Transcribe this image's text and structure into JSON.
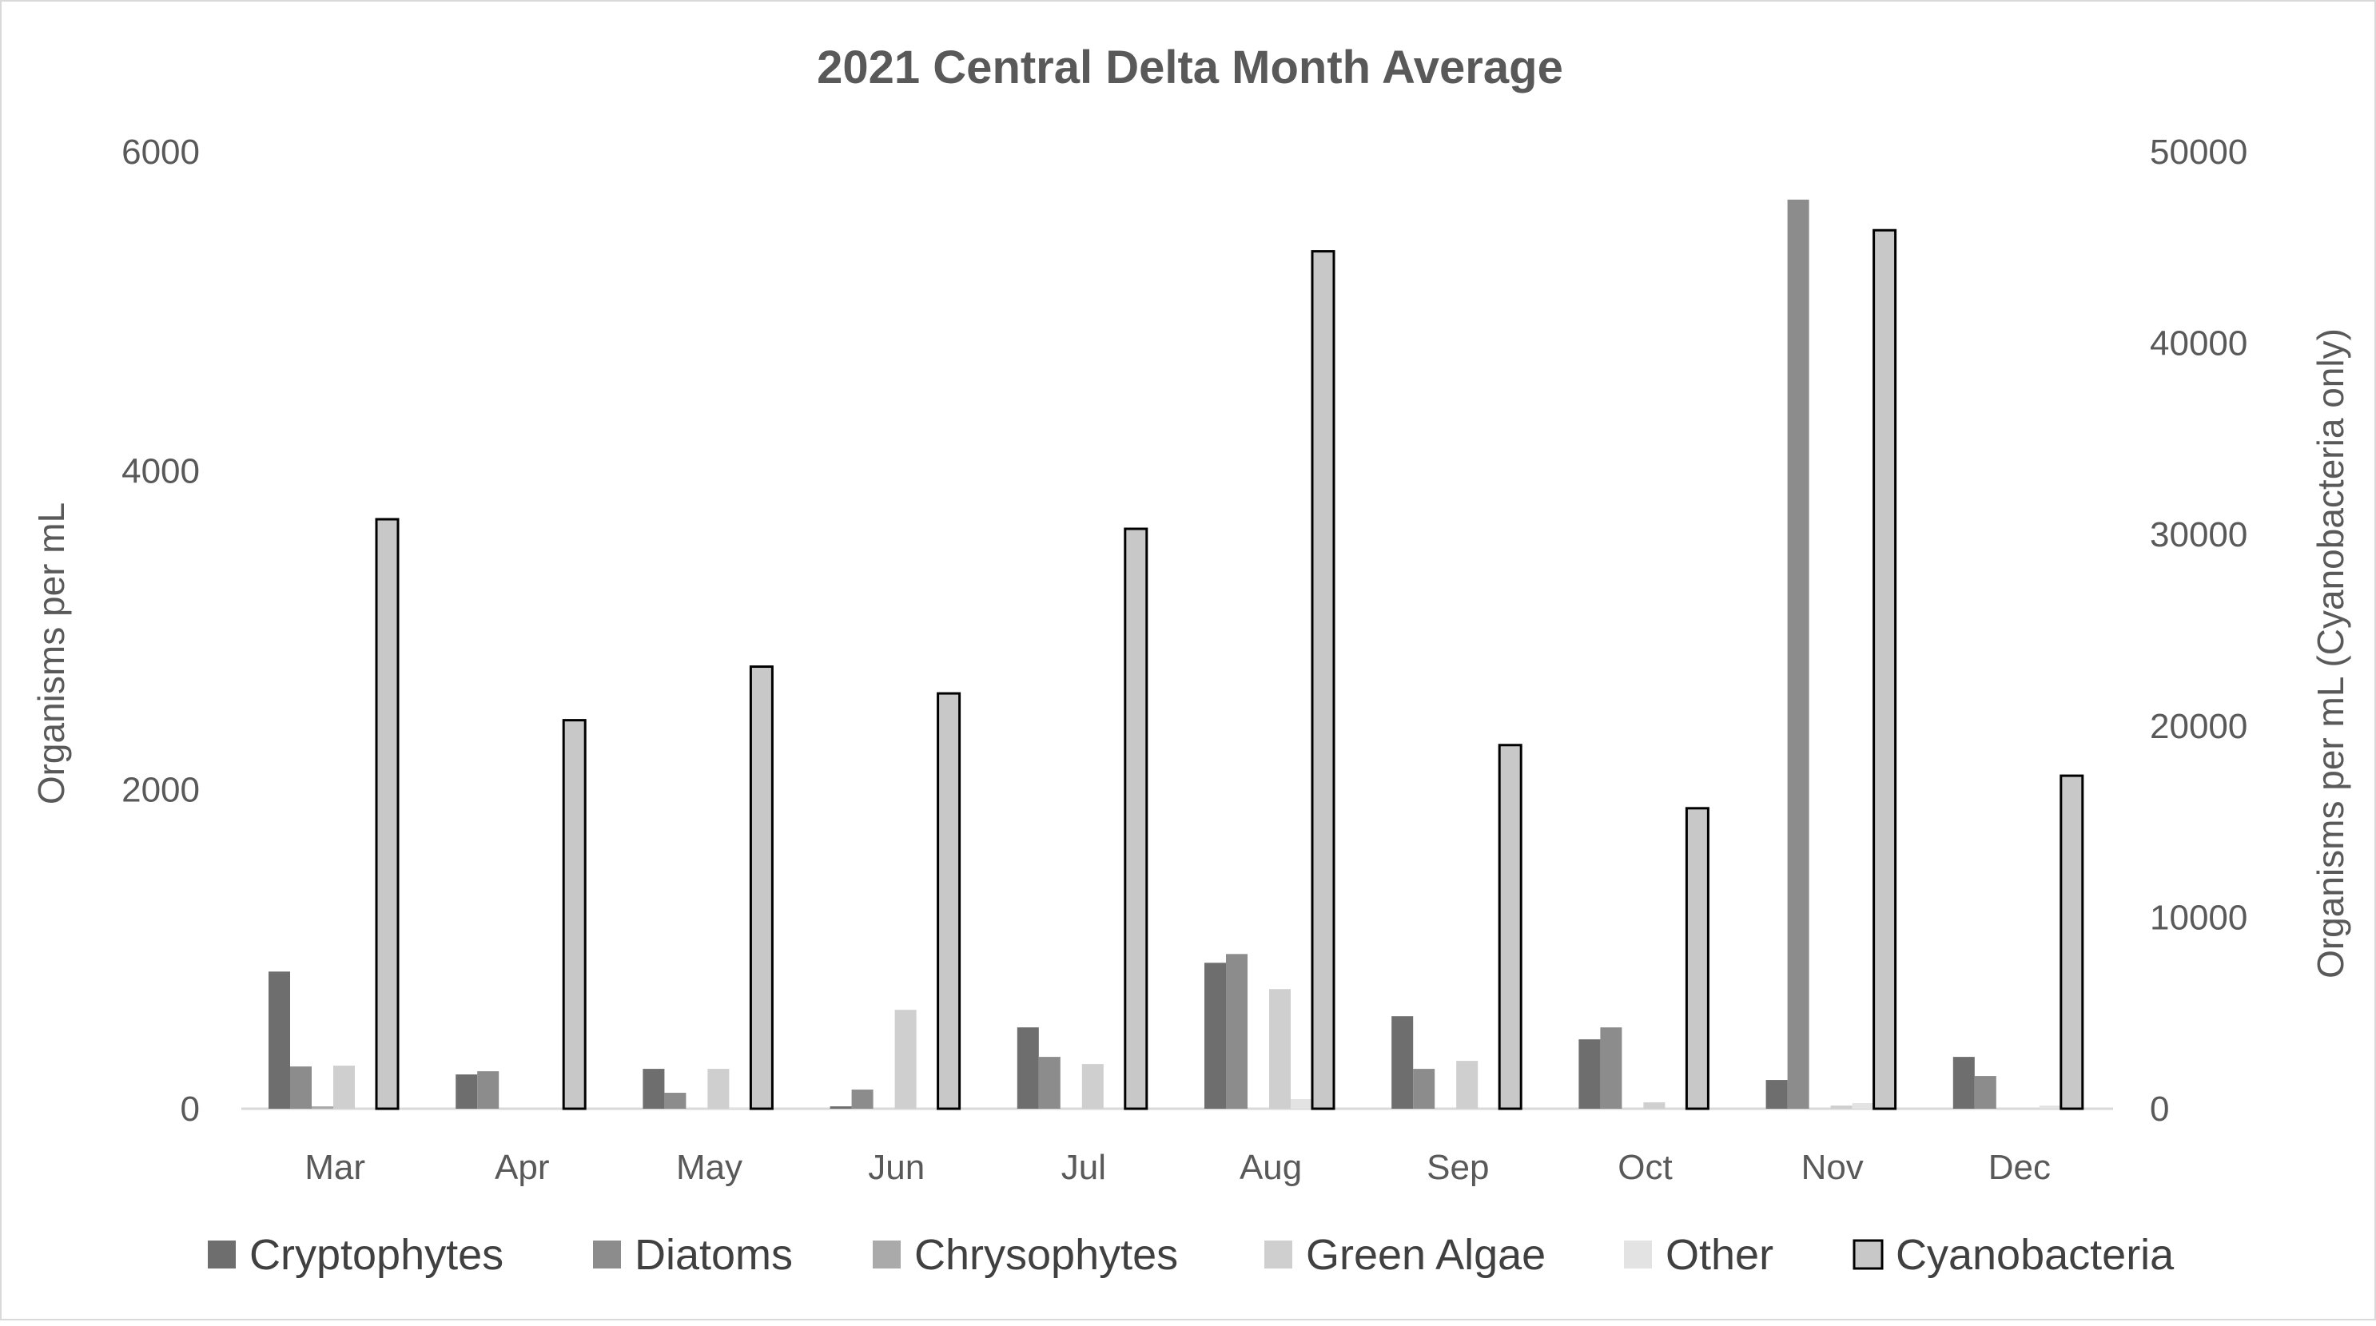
{
  "chart_data": {
    "type": "bar",
    "title": "2021 Central Delta Month Average",
    "categories": [
      "Mar",
      "Apr",
      "May",
      "Jun",
      "Jul",
      "Aug",
      "Sep",
      "Oct",
      "Nov",
      "Dec"
    ],
    "ylabel": "Organisms per mL",
    "ylabel_right": "Organisms per mL (Cyanobacteria only)",
    "ylim": [
      0,
      6000
    ],
    "ylim_right": [
      0,
      50000
    ],
    "yticks": [
      "0",
      "2000",
      "4000",
      "6000"
    ],
    "yticks_right": [
      "0",
      "10000",
      "20000",
      "30000",
      "40000",
      "50000"
    ],
    "grid": false,
    "legend_position": "bottom",
    "series": [
      {
        "name": "Cryptophytes",
        "axis": "left",
        "color": "#6e6e6e",
        "values": [
          860,
          215,
          250,
          15,
          510,
          915,
          580,
          435,
          180,
          325
        ]
      },
      {
        "name": "Diatoms",
        "axis": "left",
        "color": "#8c8c8c",
        "values": [
          265,
          235,
          100,
          120,
          325,
          970,
          250,
          510,
          5700,
          205
        ]
      },
      {
        "name": "Chrysophytes",
        "axis": "left",
        "color": "#aaaaaa",
        "values": [
          15,
          0,
          0,
          0,
          0,
          0,
          0,
          0,
          0,
          0
        ]
      },
      {
        "name": "Green Algae",
        "axis": "left",
        "color": "#cfcfcf",
        "values": [
          270,
          0,
          250,
          620,
          280,
          750,
          300,
          40,
          20,
          0
        ]
      },
      {
        "name": "Other",
        "axis": "left",
        "color": "#e3e3e3",
        "values": [
          0,
          0,
          5,
          0,
          0,
          60,
          0,
          0,
          35,
          20
        ]
      },
      {
        "name": "Cyanobacteria",
        "axis": "right",
        "color": "#c8c8c8",
        "outline": "#000000",
        "values": [
          30800,
          20300,
          23100,
          21700,
          30300,
          44800,
          19000,
          15700,
          45900,
          17400
        ]
      }
    ]
  }
}
